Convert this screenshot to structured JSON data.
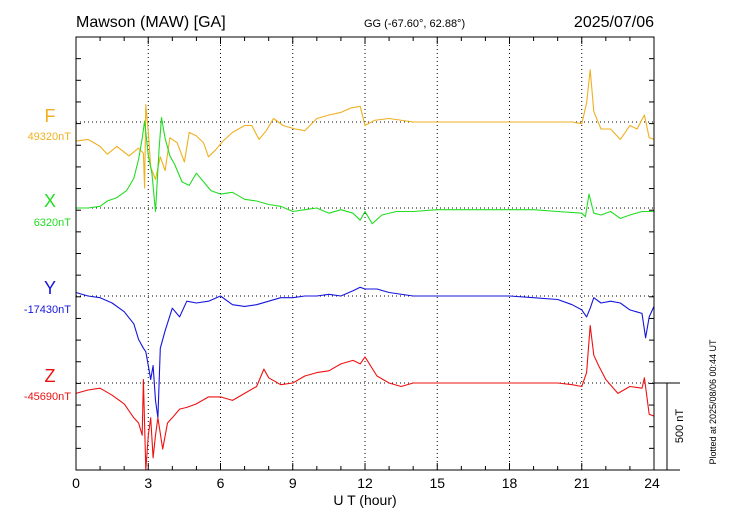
{
  "header": {
    "station": "Mawson (MAW)  [GA]",
    "coords": "GG (-67.60°,  62.88°)",
    "date": "2025/07/06"
  },
  "footer": {
    "plotted": "Plotted at 2025/08/06 00:44 UT",
    "scale_label": "500 nT"
  },
  "chart_data": {
    "type": "line",
    "title": "Mawson (MAW)  [GA]",
    "xlabel": "U T (hour)",
    "x_ticks": [
      "0",
      "3",
      "6",
      "9",
      "12",
      "15",
      "18",
      "21",
      "24"
    ],
    "xlim": [
      0,
      24
    ],
    "grid": true,
    "scale_bar_nT": 500,
    "series": [
      {
        "name": "F",
        "baseline_label": "49320nT",
        "baseline_nT": 49320,
        "color": "#f0b020",
        "points": [
          [
            0,
            -110
          ],
          [
            0.5,
            -100
          ],
          [
            1,
            -140
          ],
          [
            1.3,
            -185
          ],
          [
            1.7,
            -140
          ],
          [
            2.2,
            -195
          ],
          [
            2.6,
            -150
          ],
          [
            2.8,
            -180
          ],
          [
            2.85,
            -380
          ],
          [
            2.9,
            100
          ],
          [
            3.0,
            -60
          ],
          [
            3.1,
            -260
          ],
          [
            3.3,
            -330
          ],
          [
            3.5,
            -200
          ],
          [
            3.7,
            -280
          ],
          [
            3.9,
            -90
          ],
          [
            4.2,
            -120
          ],
          [
            4.5,
            -230
          ],
          [
            4.7,
            -60
          ],
          [
            5.0,
            -80
          ],
          [
            5.3,
            -120
          ],
          [
            5.5,
            -200
          ],
          [
            5.8,
            -160
          ],
          [
            6.1,
            -110
          ],
          [
            6.5,
            -60
          ],
          [
            7.0,
            -20
          ],
          [
            7.3,
            -20
          ],
          [
            7.6,
            -100
          ],
          [
            7.9,
            -50
          ],
          [
            8.2,
            20
          ],
          [
            8.6,
            -20
          ],
          [
            9.1,
            -40
          ],
          [
            9.5,
            -50
          ],
          [
            10.0,
            20
          ],
          [
            10.5,
            40
          ],
          [
            11.0,
            55
          ],
          [
            11.4,
            80
          ],
          [
            11.8,
            90
          ],
          [
            12.0,
            -20
          ],
          [
            12.4,
            10
          ],
          [
            13.0,
            20
          ],
          [
            14.0,
            0
          ],
          [
            15.0,
            0
          ],
          [
            16.0,
            0
          ],
          [
            17.0,
            0
          ],
          [
            18.0,
            0
          ],
          [
            19.0,
            0
          ],
          [
            20.0,
            0
          ],
          [
            20.6,
            0
          ],
          [
            21.0,
            -10
          ],
          [
            21.2,
            110
          ],
          [
            21.35,
            300
          ],
          [
            21.5,
            60
          ],
          [
            21.8,
            -40
          ],
          [
            22.2,
            -40
          ],
          [
            22.6,
            -100
          ],
          [
            23.0,
            -20
          ],
          [
            23.3,
            -40
          ],
          [
            23.6,
            40
          ],
          [
            23.8,
            -90
          ],
          [
            24.0,
            -100
          ]
        ]
      },
      {
        "name": "X",
        "baseline_label": "6320nT",
        "baseline_nT": 6320,
        "color": "#22dd22",
        "points": [
          [
            0,
            0
          ],
          [
            0.5,
            0
          ],
          [
            1,
            10
          ],
          [
            1.3,
            40
          ],
          [
            1.7,
            60
          ],
          [
            2.1,
            100
          ],
          [
            2.4,
            170
          ],
          [
            2.6,
            280
          ],
          [
            2.75,
            400
          ],
          [
            2.85,
            500
          ],
          [
            3.0,
            300
          ],
          [
            3.15,
            200
          ],
          [
            3.3,
            -20
          ],
          [
            3.45,
            340
          ],
          [
            3.55,
            520
          ],
          [
            3.7,
            400
          ],
          [
            3.9,
            300
          ],
          [
            4.1,
            250
          ],
          [
            4.4,
            150
          ],
          [
            4.7,
            130
          ],
          [
            5.0,
            200
          ],
          [
            5.3,
            150
          ],
          [
            5.6,
            100
          ],
          [
            6.0,
            80
          ],
          [
            6.5,
            90
          ],
          [
            7.0,
            50
          ],
          [
            7.5,
            40
          ],
          [
            8.0,
            20
          ],
          [
            8.5,
            10
          ],
          [
            9.0,
            -20
          ],
          [
            9.5,
            -10
          ],
          [
            10.0,
            0
          ],
          [
            10.5,
            -30
          ],
          [
            11.0,
            -10
          ],
          [
            11.5,
            -30
          ],
          [
            11.8,
            -70
          ],
          [
            12.0,
            -20
          ],
          [
            12.3,
            -90
          ],
          [
            12.7,
            -40
          ],
          [
            13.3,
            -20
          ],
          [
            14.0,
            -20
          ],
          [
            15.0,
            -10
          ],
          [
            16.0,
            -10
          ],
          [
            17.0,
            -10
          ],
          [
            18.0,
            -10
          ],
          [
            19.0,
            -10
          ],
          [
            20.0,
            -20
          ],
          [
            21.0,
            -30
          ],
          [
            21.15,
            -50
          ],
          [
            21.3,
            80
          ],
          [
            21.5,
            -30
          ],
          [
            21.8,
            -40
          ],
          [
            22.2,
            -20
          ],
          [
            22.6,
            -60
          ],
          [
            23.0,
            -40
          ],
          [
            23.5,
            -20
          ],
          [
            24.0,
            -20
          ]
        ]
      },
      {
        "name": "Y",
        "baseline_label": "-17430nT",
        "baseline_nT": -17430,
        "color": "#1515dd",
        "points": [
          [
            0,
            20
          ],
          [
            0.5,
            0
          ],
          [
            1,
            -10
          ],
          [
            1.5,
            -40
          ],
          [
            2.0,
            -90
          ],
          [
            2.4,
            -160
          ],
          [
            2.6,
            -250
          ],
          [
            2.8,
            -300
          ],
          [
            2.9,
            -320
          ],
          [
            3.0,
            -400
          ],
          [
            3.1,
            -480
          ],
          [
            3.2,
            -400
          ],
          [
            3.3,
            -600
          ],
          [
            3.4,
            -700
          ],
          [
            3.5,
            -300
          ],
          [
            3.7,
            -200
          ],
          [
            4.0,
            -70
          ],
          [
            4.3,
            -120
          ],
          [
            4.6,
            -30
          ],
          [
            5.0,
            -40
          ],
          [
            5.5,
            -30
          ],
          [
            6.0,
            0
          ],
          [
            6.5,
            -50
          ],
          [
            7.0,
            -60
          ],
          [
            7.5,
            -50
          ],
          [
            8.0,
            -30
          ],
          [
            8.5,
            -10
          ],
          [
            9.0,
            -10
          ],
          [
            9.5,
            0
          ],
          [
            10.0,
            0
          ],
          [
            10.5,
            10
          ],
          [
            11.0,
            0
          ],
          [
            11.5,
            30
          ],
          [
            11.8,
            50
          ],
          [
            12.0,
            40
          ],
          [
            12.5,
            40
          ],
          [
            13.0,
            20
          ],
          [
            14.0,
            0
          ],
          [
            15.0,
            0
          ],
          [
            16.0,
            0
          ],
          [
            17.0,
            0
          ],
          [
            18.0,
            0
          ],
          [
            19.0,
            -10
          ],
          [
            20.0,
            -20
          ],
          [
            20.6,
            -50
          ],
          [
            21.0,
            -80
          ],
          [
            21.2,
            -120
          ],
          [
            21.35,
            -70
          ],
          [
            21.5,
            -10
          ],
          [
            21.8,
            -40
          ],
          [
            22.2,
            -30
          ],
          [
            22.6,
            -40
          ],
          [
            23.0,
            -80
          ],
          [
            23.5,
            -100
          ],
          [
            23.65,
            -240
          ],
          [
            23.8,
            -120
          ],
          [
            24.0,
            -60
          ]
        ]
      },
      {
        "name": "Z",
        "baseline_label": "-45690nT",
        "baseline_nT": -45690,
        "color": "#ee1111",
        "points": [
          [
            0,
            -60
          ],
          [
            0.5,
            -40
          ],
          [
            1.0,
            -30
          ],
          [
            1.5,
            -70
          ],
          [
            2.0,
            -120
          ],
          [
            2.4,
            -200
          ],
          [
            2.6,
            -230
          ],
          [
            2.75,
            -300
          ],
          [
            2.8,
            20
          ],
          [
            2.9,
            -500
          ],
          [
            3.0,
            -300
          ],
          [
            3.1,
            -200
          ],
          [
            3.2,
            -430
          ],
          [
            3.3,
            -300
          ],
          [
            3.4,
            -200
          ],
          [
            3.6,
            -380
          ],
          [
            3.8,
            -230
          ],
          [
            4.0,
            -200
          ],
          [
            4.3,
            -150
          ],
          [
            4.6,
            -140
          ],
          [
            5.0,
            -120
          ],
          [
            5.5,
            -80
          ],
          [
            6.0,
            -80
          ],
          [
            6.5,
            -100
          ],
          [
            7.0,
            -60
          ],
          [
            7.5,
            -20
          ],
          [
            7.8,
            80
          ],
          [
            8.0,
            30
          ],
          [
            8.5,
            -10
          ],
          [
            9.0,
            0
          ],
          [
            9.5,
            40
          ],
          [
            10.0,
            60
          ],
          [
            10.5,
            70
          ],
          [
            11.0,
            110
          ],
          [
            11.5,
            130
          ],
          [
            11.8,
            110
          ],
          [
            12.0,
            150
          ],
          [
            12.5,
            40
          ],
          [
            13.0,
            0
          ],
          [
            13.5,
            -20
          ],
          [
            14.0,
            0
          ],
          [
            15.0,
            0
          ],
          [
            16.0,
            0
          ],
          [
            17.0,
            0
          ],
          [
            18.0,
            0
          ],
          [
            19.0,
            0
          ],
          [
            20.0,
            0
          ],
          [
            20.6,
            -10
          ],
          [
            21.0,
            -20
          ],
          [
            21.2,
            60
          ],
          [
            21.35,
            330
          ],
          [
            21.5,
            160
          ],
          [
            21.7,
            100
          ],
          [
            22.0,
            20
          ],
          [
            22.5,
            -60
          ],
          [
            23.0,
            -20
          ],
          [
            23.5,
            -30
          ],
          [
            23.6,
            30
          ],
          [
            23.8,
            -180
          ],
          [
            24.0,
            -190
          ]
        ]
      }
    ]
  }
}
